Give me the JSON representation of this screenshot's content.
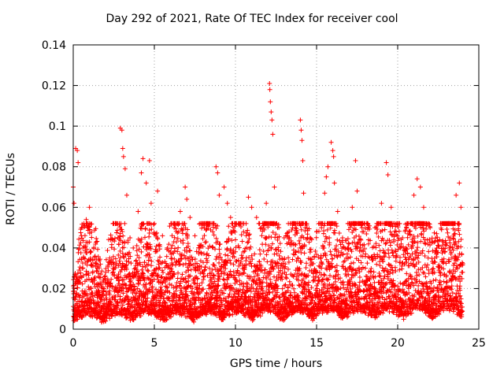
{
  "chart_data": {
    "type": "scatter",
    "title": "Day 292 of 2021, Rate Of TEC Index for receiver cool",
    "xlabel": "GPS time / hours",
    "ylabel": "ROTI / TECUs",
    "xlim": [
      0,
      25
    ],
    "ylim": [
      0,
      0.14
    ],
    "xticks": [
      "0",
      "5",
      "10",
      "15",
      "20",
      "25"
    ],
    "yticks": [
      "0",
      "0.02",
      "0.04",
      "0.06",
      "0.08",
      "0.1",
      "0.12",
      "0.14"
    ],
    "grid": true,
    "marker": "+",
    "color": "#ff0000",
    "series": [
      {
        "points": [
          [
            0.0,
            0.07
          ],
          [
            0.05,
            0.062
          ],
          [
            0.15,
            0.089
          ],
          [
            0.25,
            0.088
          ],
          [
            0.3,
            0.082
          ],
          [
            0.5,
            0.046
          ],
          [
            0.6,
            0.04
          ],
          [
            0.8,
            0.054
          ],
          [
            0.9,
            0.05
          ],
          [
            1.0,
            0.06
          ],
          [
            1.1,
            0.038
          ],
          [
            1.2,
            0.034
          ],
          [
            1.5,
            0.03
          ],
          [
            2.0,
            0.028
          ],
          [
            2.3,
            0.044
          ],
          [
            2.5,
            0.032
          ],
          [
            2.9,
            0.099
          ],
          [
            3.0,
            0.098
          ],
          [
            3.05,
            0.089
          ],
          [
            3.1,
            0.085
          ],
          [
            3.2,
            0.079
          ],
          [
            3.3,
            0.066
          ],
          [
            3.5,
            0.045
          ],
          [
            3.7,
            0.04
          ],
          [
            4.0,
            0.058
          ],
          [
            4.2,
            0.077
          ],
          [
            4.3,
            0.084
          ],
          [
            4.5,
            0.072
          ],
          [
            4.7,
            0.083
          ],
          [
            4.8,
            0.062
          ],
          [
            5.0,
            0.052
          ],
          [
            5.2,
            0.068
          ],
          [
            5.5,
            0.046
          ],
          [
            5.8,
            0.04
          ],
          [
            6.2,
            0.043
          ],
          [
            6.6,
            0.058
          ],
          [
            6.9,
            0.07
          ],
          [
            7.0,
            0.064
          ],
          [
            7.2,
            0.055
          ],
          [
            7.5,
            0.046
          ],
          [
            7.8,
            0.04
          ],
          [
            8.2,
            0.043
          ],
          [
            8.6,
            0.048
          ],
          [
            8.8,
            0.08
          ],
          [
            8.9,
            0.077
          ],
          [
            9.0,
            0.066
          ],
          [
            9.3,
            0.07
          ],
          [
            9.5,
            0.062
          ],
          [
            9.7,
            0.055
          ],
          [
            10.0,
            0.044
          ],
          [
            10.5,
            0.048
          ],
          [
            10.8,
            0.065
          ],
          [
            11.0,
            0.06
          ],
          [
            11.3,
            0.055
          ],
          [
            11.6,
            0.05
          ],
          [
            11.9,
            0.062
          ],
          [
            12.1,
            0.121
          ],
          [
            12.12,
            0.118
          ],
          [
            12.15,
            0.112
          ],
          [
            12.2,
            0.107
          ],
          [
            12.25,
            0.103
          ],
          [
            12.3,
            0.096
          ],
          [
            12.4,
            0.07
          ],
          [
            12.6,
            0.05
          ],
          [
            13.0,
            0.045
          ],
          [
            13.3,
            0.048
          ],
          [
            13.7,
            0.05
          ],
          [
            14.0,
            0.103
          ],
          [
            14.05,
            0.098
          ],
          [
            14.1,
            0.093
          ],
          [
            14.15,
            0.083
          ],
          [
            14.2,
            0.067
          ],
          [
            14.3,
            0.05
          ],
          [
            14.6,
            0.045
          ],
          [
            15.0,
            0.048
          ],
          [
            15.3,
            0.05
          ],
          [
            15.5,
            0.067
          ],
          [
            15.6,
            0.075
          ],
          [
            15.7,
            0.08
          ],
          [
            15.9,
            0.092
          ],
          [
            16.0,
            0.088
          ],
          [
            16.05,
            0.085
          ],
          [
            16.1,
            0.072
          ],
          [
            16.3,
            0.058
          ],
          [
            16.6,
            0.045
          ],
          [
            17.0,
            0.042
          ],
          [
            17.2,
            0.06
          ],
          [
            17.4,
            0.083
          ],
          [
            17.5,
            0.068
          ],
          [
            17.8,
            0.05
          ],
          [
            18.2,
            0.044
          ],
          [
            18.6,
            0.05
          ],
          [
            19.0,
            0.062
          ],
          [
            19.3,
            0.082
          ],
          [
            19.4,
            0.076
          ],
          [
            19.6,
            0.06
          ],
          [
            19.9,
            0.048
          ],
          [
            20.3,
            0.045
          ],
          [
            20.6,
            0.052
          ],
          [
            21.0,
            0.066
          ],
          [
            21.2,
            0.074
          ],
          [
            21.4,
            0.07
          ],
          [
            21.6,
            0.06
          ],
          [
            22.0,
            0.05
          ],
          [
            22.4,
            0.047
          ],
          [
            22.8,
            0.043
          ],
          [
            23.2,
            0.04
          ],
          [
            23.6,
            0.066
          ],
          [
            23.8,
            0.072
          ],
          [
            23.9,
            0.06
          ]
        ]
      }
    ]
  }
}
